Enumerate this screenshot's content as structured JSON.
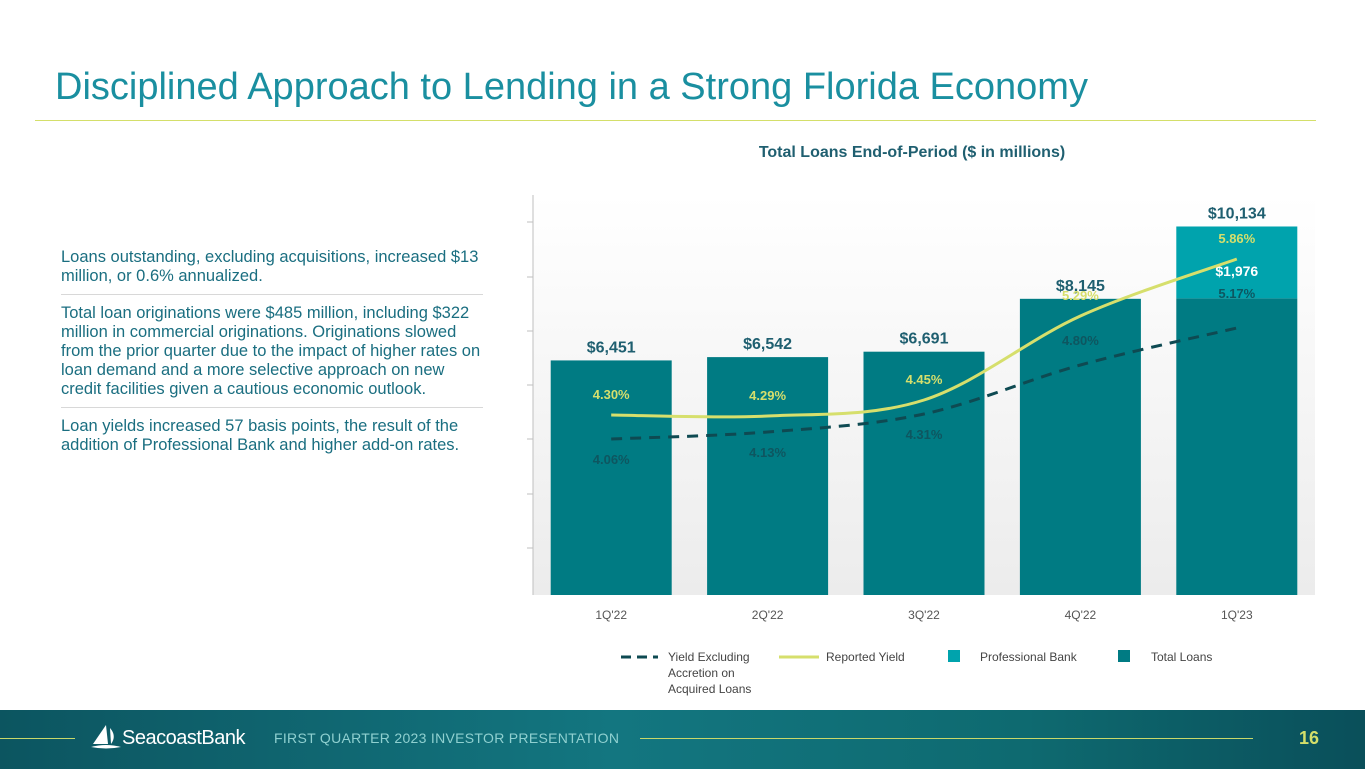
{
  "slide": {
    "title": "Disciplined Approach to Lending in a Strong Florida Economy",
    "bullets": [
      "Loans outstanding, excluding acquisitions, increased $13 million, or 0.6% annualized.",
      "Total loan originations were $485 million, including $322 million in commercial originations. Originations slowed from the prior quarter due to the impact of higher rates on loan demand and a more selective approach on new credit facilities given a cautious economic outlook.",
      "Loan yields increased 57 basis points, the result of the addition of Professional Bank and higher add-on rates."
    ]
  },
  "chart_data": {
    "type": "bar",
    "stacked": true,
    "title": "Total Loans End-of-Period ($ in millions)",
    "categories": [
      "1Q'22",
      "2Q'22",
      "3Q'22",
      "4Q'22",
      "1Q'23"
    ],
    "series": [
      {
        "name": "Total Loans",
        "values": [
          6451,
          6542,
          6691,
          8145,
          8158
        ]
      },
      {
        "name": "Professional Bank",
        "values": [
          0,
          0,
          0,
          0,
          1976
        ]
      }
    ],
    "total_labels": [
      "$6,451",
      "$6,542",
      "$6,691",
      "$8,145",
      "$10,134"
    ],
    "professional_bank_label": "$1,976",
    "ylim": [
      0,
      11000
    ],
    "lines": [
      {
        "name": "Reported Yield",
        "values": [
          4.3,
          4.29,
          4.45,
          5.29,
          5.86
        ],
        "labels": [
          "4.30%",
          "4.29%",
          "4.45%",
          "5.29%",
          "5.86%"
        ],
        "ylim": [
          2.5,
          6.5
        ]
      },
      {
        "name": "Yield Excluding Accretion on Acquired Loans",
        "values": [
          4.06,
          4.13,
          4.31,
          4.8,
          5.17
        ],
        "labels": [
          "4.06%",
          "4.13%",
          "4.31%",
          "4.80%",
          "5.17%"
        ],
        "ylim": [
          2.5,
          6.5
        ]
      }
    ],
    "colors": {
      "total": "#007b83",
      "professional": "#00a3ad",
      "reported": "#d6df6c",
      "excluding": "#0e4a52"
    },
    "legend": {
      "excluding": "Yield Excluding Accretion on Acquired Loans",
      "reported": "Reported Yield",
      "professional": "Professional Bank",
      "total": "Total Loans"
    }
  },
  "footer": {
    "brand": "SeacoastBank",
    "caption": "FIRST QUARTER 2023 INVESTOR PRESENTATION",
    "page": "16"
  }
}
